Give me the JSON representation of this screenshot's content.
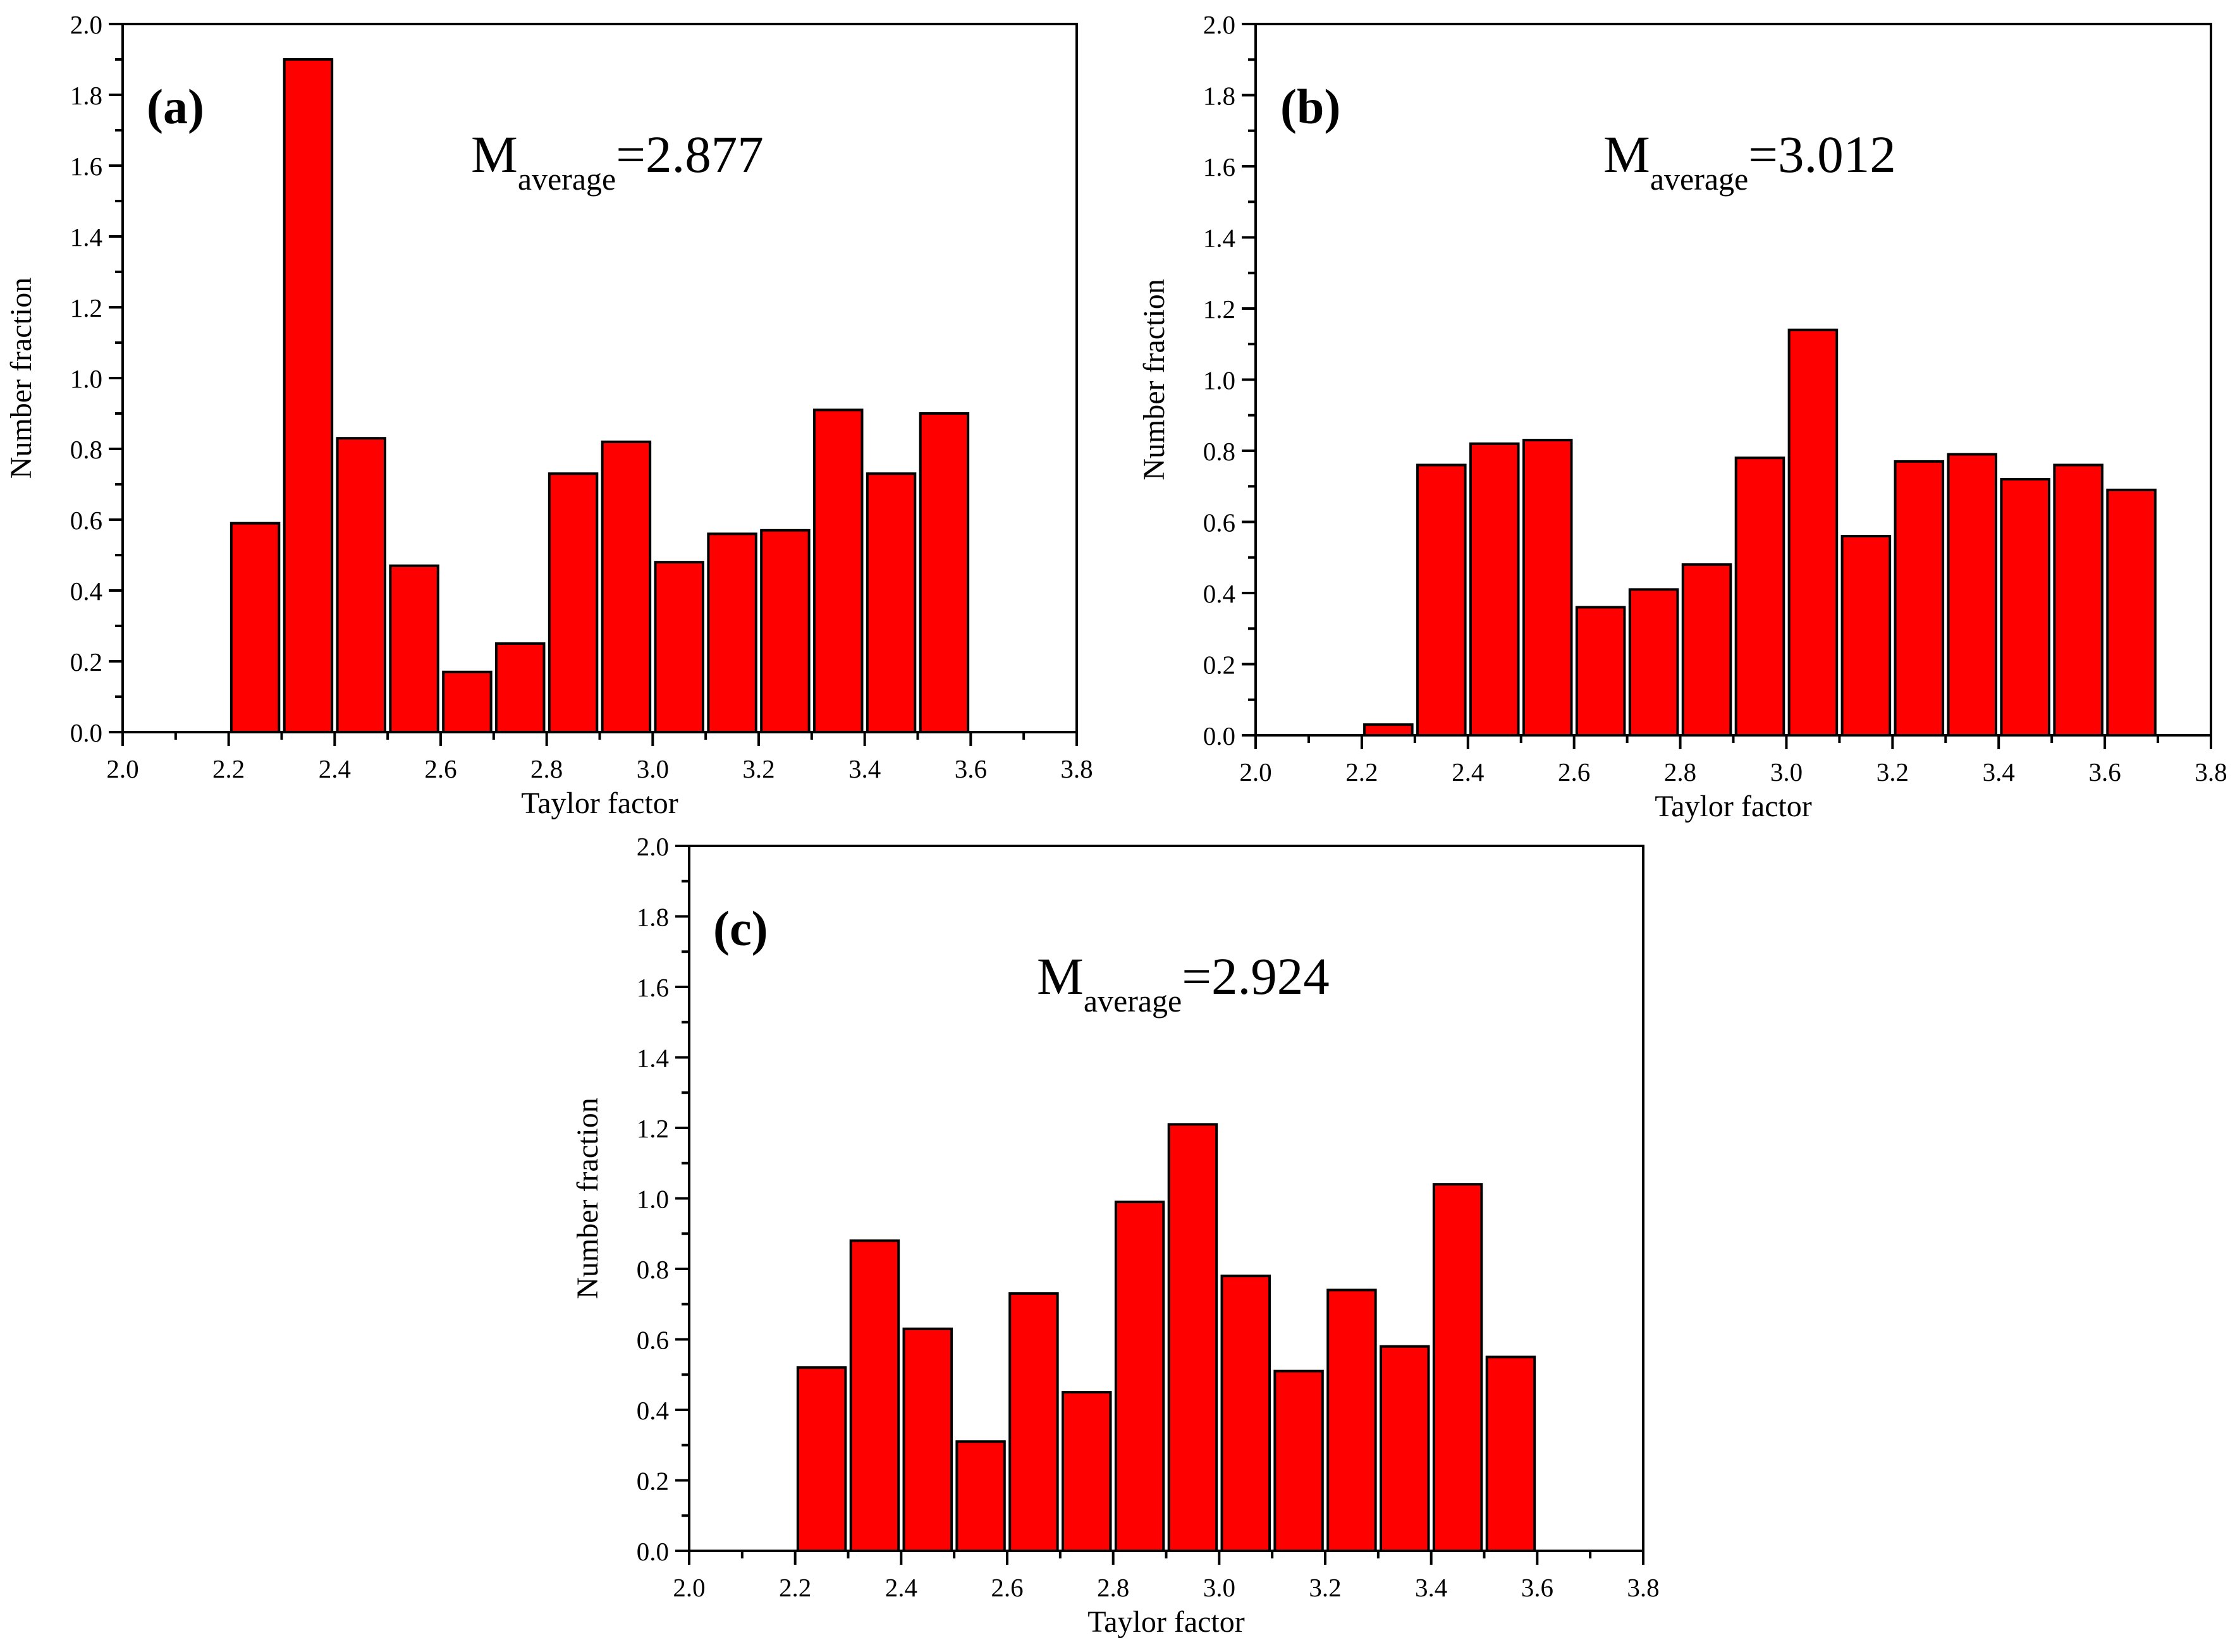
{
  "figure": {
    "panel_count": 3,
    "bar_color": "#ff0000"
  },
  "chart_data": [
    {
      "type": "bar",
      "panel_label": "(a)",
      "annotation": {
        "main": "M",
        "sub": "average",
        "value": "=2.877"
      },
      "xlabel": "Taylor factor",
      "ylabel": "Number fraction",
      "xlim": [
        2.0,
        3.8
      ],
      "ylim": [
        0.0,
        2.0
      ],
      "xticks": [
        "2.0",
        "2.2",
        "2.4",
        "2.6",
        "2.8",
        "3.0",
        "3.2",
        "3.4",
        "3.6",
        "3.8"
      ],
      "yticks": [
        "0.0",
        "0.2",
        "0.4",
        "0.6",
        "0.8",
        "1.0",
        "1.2",
        "1.4",
        "1.6",
        "1.8",
        "2.0"
      ],
      "bin_width": 0.1,
      "bin_centers": [
        2.25,
        2.35,
        2.45,
        2.55,
        2.65,
        2.75,
        2.85,
        2.95,
        3.05,
        3.15,
        3.25,
        3.35,
        3.45,
        3.55
      ],
      "values": [
        0.59,
        1.9,
        0.83,
        0.47,
        0.17,
        0.25,
        0.73,
        0.82,
        0.48,
        0.56,
        0.57,
        0.91,
        0.73,
        0.9
      ]
    },
    {
      "type": "bar",
      "panel_label": "(b)",
      "annotation": {
        "main": "M",
        "sub": "average",
        "value": "=3.012"
      },
      "xlabel": "Taylor factor",
      "ylabel": "Number fraction",
      "xlim": [
        2.0,
        3.8
      ],
      "ylim": [
        0.0,
        2.0
      ],
      "xticks": [
        "2.0",
        "2.2",
        "2.4",
        "2.6",
        "2.8",
        "3.0",
        "3.2",
        "3.4",
        "3.6",
        "3.8"
      ],
      "yticks": [
        "0.0",
        "0.2",
        "0.4",
        "0.6",
        "0.8",
        "1.0",
        "1.2",
        "1.4",
        "1.6",
        "1.8",
        "2.0"
      ],
      "bin_width": 0.1,
      "bin_centers": [
        2.25,
        2.35,
        2.45,
        2.55,
        2.65,
        2.75,
        2.85,
        2.95,
        3.05,
        3.15,
        3.25,
        3.35,
        3.45,
        3.55,
        3.65
      ],
      "values": [
        0.03,
        0.76,
        0.82,
        0.83,
        0.36,
        0.41,
        0.48,
        0.78,
        1.14,
        0.56,
        0.77,
        0.79,
        0.72,
        0.76,
        0.69
      ]
    },
    {
      "type": "bar",
      "panel_label": "(c)",
      "annotation": {
        "main": "M",
        "sub": "average",
        "value": "=2.924"
      },
      "xlabel": "Taylor factor",
      "ylabel": "Number fraction",
      "xlim": [
        2.0,
        3.8
      ],
      "ylim": [
        0.0,
        2.0
      ],
      "xticks": [
        "2.0",
        "2.2",
        "2.4",
        "2.6",
        "2.8",
        "3.0",
        "3.2",
        "3.4",
        "3.6",
        "3.8"
      ],
      "yticks": [
        "0.0",
        "0.2",
        "0.4",
        "0.6",
        "0.8",
        "1.0",
        "1.2",
        "1.4",
        "1.6",
        "1.8",
        "2.0"
      ],
      "bin_width": 0.1,
      "bin_centers": [
        2.25,
        2.35,
        2.45,
        2.55,
        2.65,
        2.75,
        2.85,
        2.95,
        3.05,
        3.15,
        3.25,
        3.35,
        3.45,
        3.55
      ],
      "values": [
        0.52,
        0.88,
        0.63,
        0.31,
        0.73,
        0.45,
        0.99,
        1.21,
        0.78,
        0.51,
        0.74,
        0.58,
        1.04,
        0.55
      ]
    }
  ]
}
